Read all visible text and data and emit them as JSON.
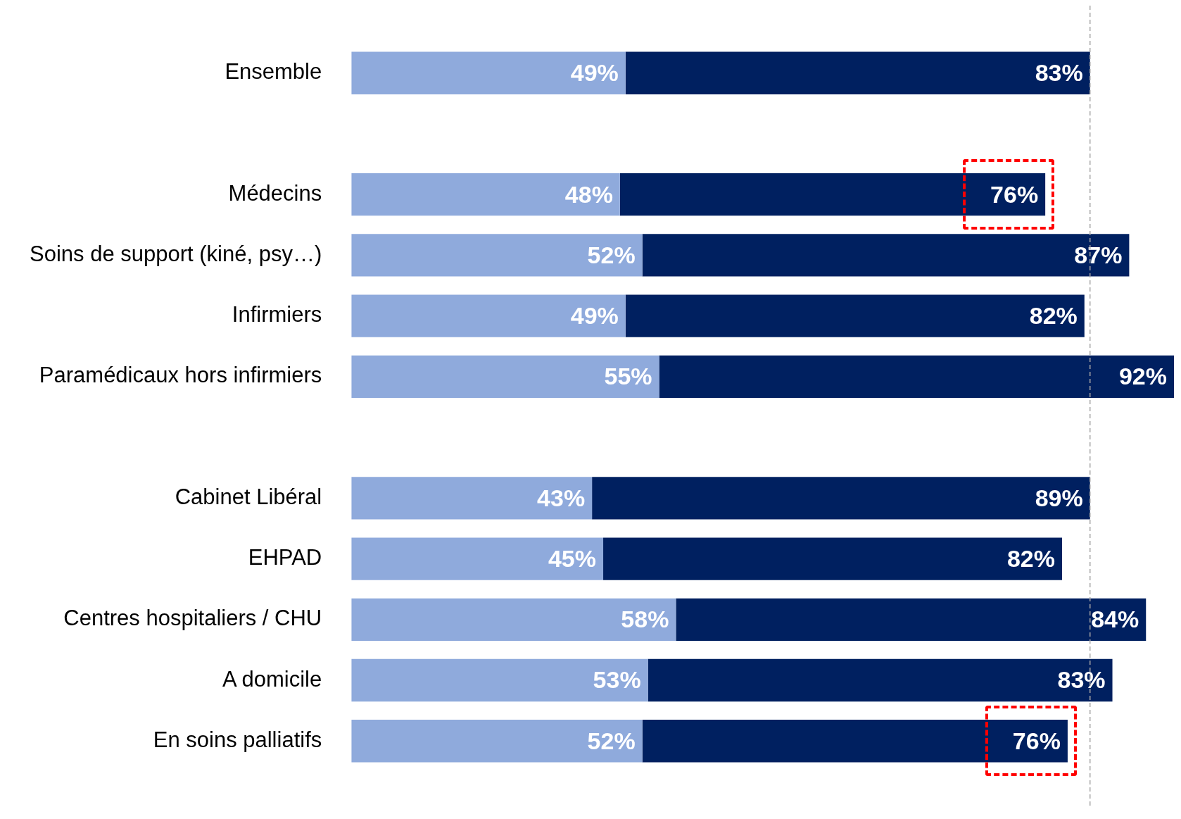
{
  "chart_data": {
    "type": "bar",
    "orientation": "horizontal",
    "stacked": true,
    "categories": [
      "Ensemble",
      null,
      "Médecins",
      "Soins de support (kiné, psy…)",
      "Infirmiers",
      "Paramédicaux hors infirmiers",
      null,
      "Cabinet Libéral",
      "EHPAD",
      "Centres hospitaliers / CHU",
      "A domicile",
      "En soins palliatifs"
    ],
    "series": [
      {
        "color": "#8faadc",
        "values": [
          49,
          null,
          48,
          52,
          49,
          55,
          null,
          43,
          45,
          58,
          53,
          52
        ],
        "value_labels": [
          "49%",
          null,
          "48%",
          "52%",
          "49%",
          "55%",
          null,
          "43%",
          "45%",
          "58%",
          "53%",
          "52%"
        ]
      },
      {
        "color": "#002060",
        "values": [
          83,
          null,
          76,
          87,
          82,
          92,
          null,
          89,
          82,
          84,
          83,
          76
        ],
        "value_labels": [
          "83%",
          null,
          "76%",
          "87%",
          "82%",
          "92%",
          null,
          "89%",
          "82%",
          "84%",
          "83%",
          "76%"
        ]
      }
    ],
    "tick_labels": "y",
    "legend": false,
    "ref_lines": [
      {
        "axis": "x",
        "value": 132,
        "color": "#a6a6a6",
        "line_style": "dashed"
      }
    ]
  }
}
